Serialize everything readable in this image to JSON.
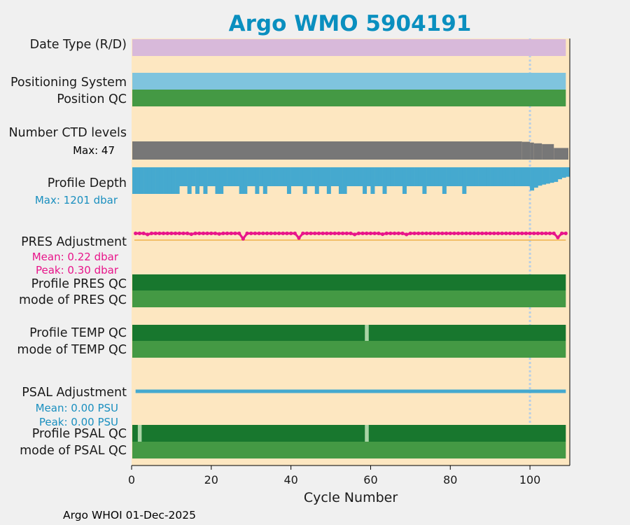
{
  "colors": {
    "background": "#f0f0f0",
    "plot_bg": "#fde7c1",
    "title": "#0a8fbf",
    "date_type": "#d8b9da",
    "positioning": "#7fc4de",
    "qc_light": "#449944",
    "qc_dark": "#18772e",
    "qc_gap": "#aad4a6",
    "ctd": "#777777",
    "depth": "#45a9cf",
    "pres": "#e8158a",
    "pres_zero": "#f0b24c",
    "psal": "#45a9cf",
    "dotted": "#b8cfe6",
    "mean_pres": "#e8158a",
    "mean_psal": "#1a8fbf"
  },
  "chart_data": {
    "type": "table",
    "title": "Argo WMO 5904191",
    "xlabel": "Cycle Number",
    "xlim": [
      0,
      110
    ],
    "xticks": [
      "0",
      "20",
      "40",
      "60",
      "80",
      "100"
    ],
    "xtick_values": [
      0,
      20,
      40,
      60,
      80,
      100
    ],
    "last_cycle": 109,
    "delayed_mode_boundary_cycle": 100,
    "rows": {
      "date_type": "Date Type (R/D)",
      "positioning": "Positioning System",
      "position_qc": "Position QC",
      "ctd_levels": "Number CTD levels",
      "ctd_max": "Max: 47",
      "profile_depth": "Profile Depth",
      "depth_max": "Max: 1201 dbar",
      "pres_adj": "PRES Adjustment",
      "pres_mean": "Mean: 0.22 dbar",
      "pres_peak": "Peak: 0.30 dbar",
      "profile_pres_qc": "Profile PRES QC",
      "mode_pres_qc": "mode of PRES QC",
      "profile_temp_qc": "Profile TEMP QC",
      "mode_temp_qc": "mode of TEMP QC",
      "psal_adj": "PSAL Adjustment",
      "psal_mean": "Mean: 0.00 PSU",
      "psal_peak": "Peak: 0.00 PSU",
      "profile_psal_qc": "Profile PSAL QC",
      "mode_psal_qc": "mode of PSAL QC"
    },
    "ctd_levels_series": {
      "max": 47,
      "steps": [
        {
          "from": 0,
          "to": 98,
          "levels": 47
        },
        {
          "from": 98,
          "to": 100,
          "levels": 46
        },
        {
          "from": 100,
          "to": 101,
          "levels": 44
        },
        {
          "from": 101,
          "to": 103,
          "levels": 42
        },
        {
          "from": 103,
          "to": 106,
          "levels": 40
        },
        {
          "from": 106,
          "to": 110,
          "levels": 30
        }
      ]
    },
    "profile_depth_series": {
      "max_dbar": 1201,
      "shallow_gap_cycles": [
        12,
        13,
        15,
        17,
        19,
        20,
        23,
        24,
        25,
        26,
        29,
        30,
        32,
        34,
        35,
        36,
        37,
        38,
        40,
        41,
        42,
        44,
        45,
        47,
        48,
        50,
        51,
        54,
        55,
        56,
        57,
        59,
        61,
        62,
        64,
        65,
        66,
        67,
        69,
        70,
        71,
        72,
        74,
        75,
        76,
        77,
        79,
        80,
        81,
        82,
        84,
        85,
        86,
        87,
        88,
        89,
        90,
        91,
        92,
        93,
        94,
        95,
        96,
        97,
        98,
        99
      ],
      "tail_depths": [
        {
          "cycle": 100,
          "depth": 1050
        },
        {
          "cycle": 101,
          "depth": 920
        },
        {
          "cycle": 102,
          "depth": 830
        },
        {
          "cycle": 103,
          "depth": 780
        },
        {
          "cycle": 104,
          "depth": 740
        },
        {
          "cycle": 105,
          "depth": 700
        },
        {
          "cycle": 106,
          "depth": 660
        },
        {
          "cycle": 107,
          "depth": 540
        },
        {
          "cycle": 108,
          "depth": 470
        },
        {
          "cycle": 109,
          "depth": 430
        }
      ]
    },
    "pres_adjustment_dbar": {
      "baseline": 0.26,
      "dips": [
        {
          "cycle": 4,
          "value": 0.22
        },
        {
          "cycle": 15,
          "value": 0.23
        },
        {
          "cycle": 22,
          "value": 0.24
        },
        {
          "cycle": 28,
          "value": 0.05
        },
        {
          "cycle": 42,
          "value": 0.08
        },
        {
          "cycle": 56,
          "value": 0.22
        },
        {
          "cycle": 63,
          "value": 0.23
        },
        {
          "cycle": 69,
          "value": 0.22
        },
        {
          "cycle": 107,
          "value": 0.1
        }
      ]
    },
    "psal_adjustment_psu": {
      "value": 0.0,
      "from": 1,
      "to": 109
    },
    "qc_gaps": {
      "profile_temp_qc": [
        59
      ],
      "profile_psal_qc": [
        2,
        59
      ]
    },
    "footer": "Argo WHOI 01-Dec-2025"
  }
}
